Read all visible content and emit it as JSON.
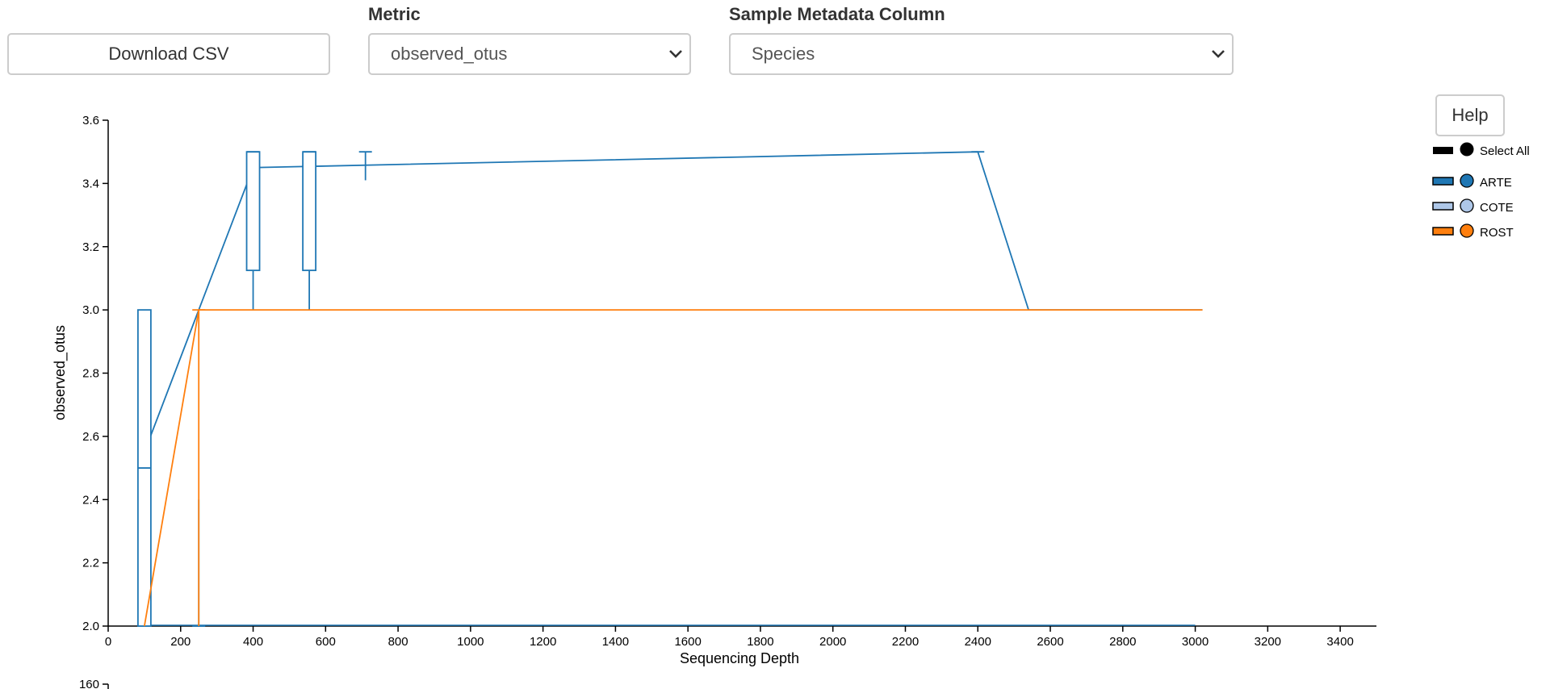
{
  "controls": {
    "download_label": "Download CSV",
    "metric_label": "Metric",
    "metric_value": "observed_otus",
    "metadata_label": "Sample Metadata Column",
    "metadata_value": "Species",
    "help_label": "Help"
  },
  "legend": {
    "select_all": "Select All",
    "items": [
      {
        "name": "ARTE",
        "color": "#1f77b4"
      },
      {
        "name": "COTE",
        "color": "#aec7e8"
      },
      {
        "name": "ROST",
        "color": "#ff7f0e"
      }
    ]
  },
  "chart_data": {
    "type": "line",
    "xlabel": "Sequencing Depth",
    "ylabel": "observed_otus",
    "xlim": [
      0,
      3500
    ],
    "ylim": [
      2.0,
      3.6
    ],
    "xticks": [
      0,
      200,
      400,
      600,
      800,
      1000,
      1200,
      1400,
      1600,
      1800,
      2000,
      2200,
      2400,
      2600,
      2800,
      3000,
      3200,
      3400
    ],
    "yticks": [
      2.0,
      2.2,
      2.4,
      2.6,
      2.8,
      3.0,
      3.2,
      3.4,
      3.6
    ],
    "series": [
      {
        "name": "ARTE",
        "color": "#1f77b4",
        "line": [
          [
            100,
            2.55
          ],
          [
            250,
            3.0
          ],
          [
            400,
            3.45
          ],
          [
            2400,
            3.5
          ],
          [
            2540,
            3.0
          ],
          [
            3020,
            3.0
          ]
        ],
        "boxes": [
          {
            "x": 100,
            "q1": 2.0,
            "median": 2.5,
            "q3": 3.0,
            "low": 2.0,
            "high": 3.0
          },
          {
            "x": 250,
            "q1": 2.0,
            "median": 2.0,
            "q3": 2.0,
            "low": 2.0,
            "high": 2.4
          },
          {
            "x": 400,
            "q1": 3.125,
            "median": 3.5,
            "q3": 3.5,
            "low": 3.0,
            "high": 3.5
          },
          {
            "x": 555,
            "q1": 3.125,
            "median": 3.5,
            "q3": 3.5,
            "low": 3.0,
            "high": 3.5
          },
          {
            "x": 710,
            "q1": 3.5,
            "median": 3.5,
            "q3": 3.5,
            "low": 3.41,
            "high": 3.5
          },
          {
            "x": 2400,
            "q1": 3.5,
            "median": 3.5,
            "q3": 3.5,
            "low": 3.5,
            "high": 3.5
          }
        ],
        "baseline": [
          100,
          3000
        ]
      },
      {
        "name": "ROST",
        "color": "#ff7f0e",
        "line": [
          [
            100,
            2.0
          ],
          [
            115,
            2.1
          ],
          [
            250,
            3.0
          ],
          [
            3020,
            3.0
          ]
        ],
        "boxes": [
          {
            "x": 250,
            "q1": 3.0,
            "median": 3.0,
            "q3": 3.0,
            "low": 2.0,
            "high": 3.0
          }
        ]
      }
    ],
    "second_chart": {
      "ytick_visible": 160
    }
  }
}
